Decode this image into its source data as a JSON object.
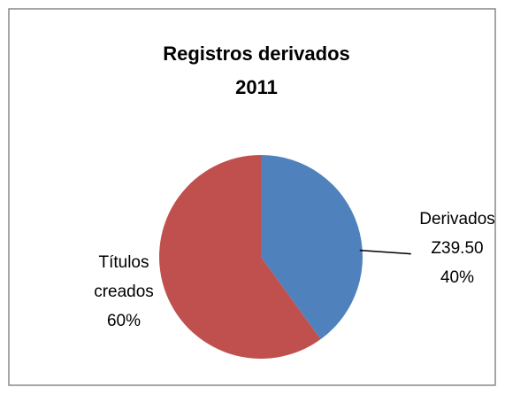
{
  "chart_data": {
    "type": "pie",
    "title": "Registros derivados 2011",
    "categories": [
      "Derivados Z39.50",
      "Títulos creados"
    ],
    "values": [
      40,
      60
    ],
    "value_labels": [
      "40%",
      "60%"
    ],
    "colors": [
      "#4f81bd",
      "#c0504d"
    ]
  }
}
